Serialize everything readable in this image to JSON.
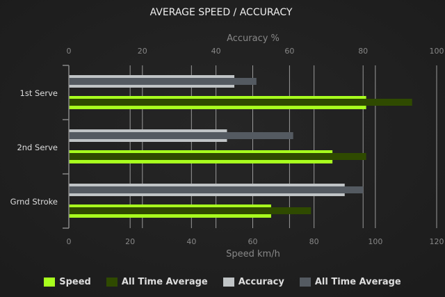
{
  "chart_data": {
    "type": "bar",
    "orientation": "horizontal",
    "title": "AVERAGE SPEED / ACCURACY",
    "categories": [
      "1st Serve",
      "2nd Serve",
      "Grnd Stroke"
    ],
    "top_axis": {
      "label": "Accuracy %",
      "range": [
        0,
        100
      ],
      "ticks": [
        "0",
        "20",
        "40",
        "60",
        "80",
        "100"
      ]
    },
    "bottom_axis": {
      "label": "Speed km/h",
      "range": [
        0,
        120
      ],
      "ticks": [
        "0",
        "20",
        "40",
        "60",
        "80",
        "100",
        "120"
      ]
    },
    "series": [
      {
        "name": "Speed",
        "axis": "bottom",
        "color": "#a8ff1e",
        "values": [
          97,
          86,
          66
        ]
      },
      {
        "name": "All Time Average",
        "axis": "bottom",
        "color": "#2f4a00",
        "values": [
          112,
          97,
          79
        ]
      },
      {
        "name": "Accuracy",
        "axis": "top",
        "color": "#c0c4c6",
        "values": [
          45,
          43,
          75
        ]
      },
      {
        "name": "All Time Average",
        "axis": "top",
        "color": "#545a61",
        "values": [
          51,
          61,
          80
        ]
      }
    ],
    "grid": true,
    "legend_position": "bottom"
  }
}
